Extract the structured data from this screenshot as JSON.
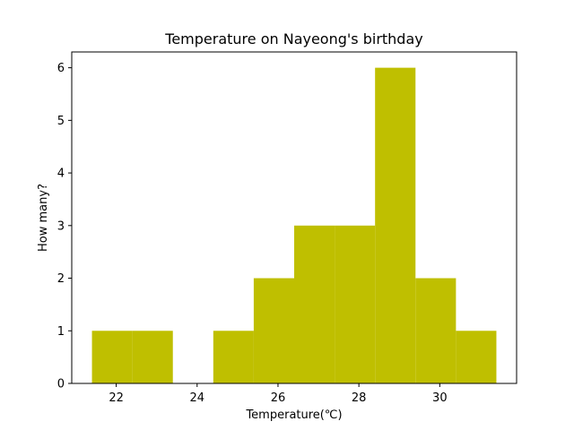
{
  "chart_data": {
    "type": "bar",
    "title": "Temperature on Nayeong's birthday",
    "xlabel": "Temperature(℃)",
    "ylabel": "How many?",
    "bar_color": "#bfbf00",
    "xlim": [
      20.9,
      31.9
    ],
    "ylim": [
      0,
      6.3
    ],
    "xticks": [
      22,
      24,
      26,
      28,
      30
    ],
    "yticks": [
      0,
      1,
      2,
      3,
      4,
      5,
      6
    ],
    "bins": [
      {
        "x0": 21.4,
        "x1": 22.4,
        "count": 1
      },
      {
        "x0": 22.4,
        "x1": 23.4,
        "count": 1
      },
      {
        "x0": 23.4,
        "x1": 24.4,
        "count": 0
      },
      {
        "x0": 24.4,
        "x1": 25.4,
        "count": 1
      },
      {
        "x0": 25.4,
        "x1": 26.4,
        "count": 2
      },
      {
        "x0": 26.4,
        "x1": 27.4,
        "count": 3
      },
      {
        "x0": 27.4,
        "x1": 28.4,
        "count": 3
      },
      {
        "x0": 28.4,
        "x1": 29.4,
        "count": 6
      },
      {
        "x0": 29.4,
        "x1": 30.4,
        "count": 2
      },
      {
        "x0": 30.4,
        "x1": 31.4,
        "count": 1
      }
    ],
    "grid": false,
    "legend": "none"
  }
}
